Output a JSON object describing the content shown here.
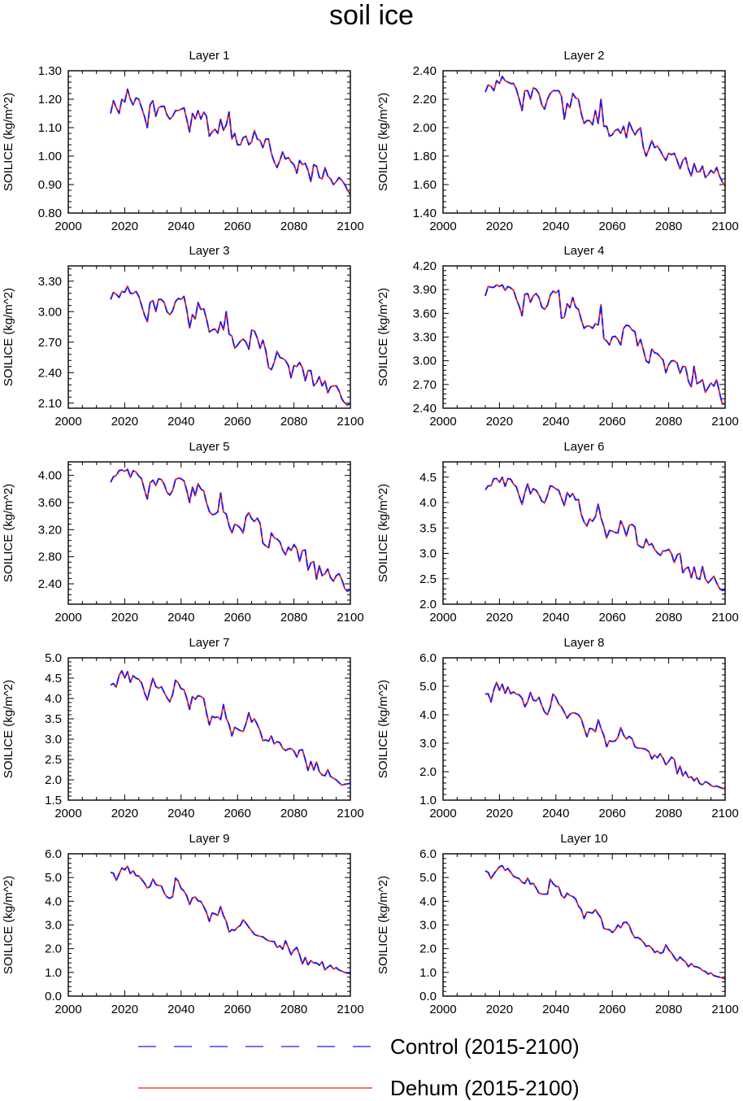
{
  "chart_data": {
    "type": "line",
    "title": "soil ice",
    "layout": "5 rows x 2 columns of panels",
    "x_axis": {
      "range": [
        2000,
        2100
      ],
      "ticks": [
        2000,
        2020,
        2040,
        2060,
        2080,
        2100
      ]
    },
    "ylabel": "SOILICE  (kg/m^2)",
    "series_styles": [
      {
        "name": "Control (2015-2100)",
        "color": "#1a1aff",
        "dash": "dashed"
      },
      {
        "name": "Dehum (2015-2100)",
        "color": "#e8201c",
        "dash": "solid"
      }
    ],
    "legend": [
      "Control (2015-2100)",
      "Dehum (2015-2100)"
    ],
    "panels": [
      {
        "title": "Layer 1",
        "ylim": [
          0.8,
          1.3
        ],
        "yticks": [
          0.8,
          0.9,
          1.0,
          1.1,
          1.2,
          1.3
        ],
        "ytick_labels": [
          "0.80",
          "0.90",
          "1.00",
          "1.10",
          "1.20",
          "1.30"
        ],
        "x_start": 2015,
        "values": [
          1.15,
          1.195,
          1.17,
          1.15,
          1.2,
          1.19,
          1.235,
          1.2,
          1.18,
          1.205,
          1.2,
          1.17,
          1.14,
          1.1,
          1.18,
          1.195,
          1.14,
          1.17,
          1.175,
          1.175,
          1.145,
          1.13,
          1.14,
          1.16,
          1.16,
          1.165,
          1.17,
          1.13,
          1.085,
          1.15,
          1.13,
          1.16,
          1.13,
          1.155,
          1.14,
          1.07,
          1.085,
          1.095,
          1.08,
          1.13,
          1.09,
          1.11,
          1.155,
          1.06,
          1.08,
          1.04,
          1.04,
          1.065,
          1.07,
          1.04,
          1.05,
          1.09,
          1.06,
          1.055,
          1.03,
          1.06,
          1.06,
          1.01,
          0.98,
          0.96,
          0.985,
          1.015,
          0.99,
          0.995,
          0.98,
          0.97,
          0.94,
          0.985,
          0.97,
          0.975,
          0.95,
          0.91,
          0.97,
          0.965,
          0.925,
          0.92,
          0.96,
          0.93,
          0.92,
          0.9,
          0.91,
          0.925,
          0.915,
          0.9,
          0.88,
          0.865
        ]
      },
      {
        "title": "Layer 2",
        "ylim": [
          1.4,
          2.4
        ],
        "yticks": [
          1.4,
          1.6,
          1.8,
          2.0,
          2.2,
          2.4
        ],
        "ytick_labels": [
          "1.40",
          "1.60",
          "1.80",
          "2.00",
          "2.20",
          "2.40"
        ],
        "x_start": 2015,
        "values": [
          2.25,
          2.3,
          2.29,
          2.26,
          2.33,
          2.31,
          2.36,
          2.33,
          2.32,
          2.31,
          2.31,
          2.27,
          2.2,
          2.12,
          2.26,
          2.26,
          2.2,
          2.28,
          2.27,
          2.24,
          2.16,
          2.13,
          2.2,
          2.24,
          2.26,
          2.26,
          2.26,
          2.22,
          2.06,
          2.17,
          2.14,
          2.24,
          2.21,
          2.2,
          2.1,
          2.03,
          2.05,
          2.05,
          2.02,
          2.12,
          2.03,
          2.2,
          2.01,
          2.01,
          1.94,
          1.95,
          1.98,
          1.99,
          1.96,
          2.01,
          1.93,
          2.04,
          1.99,
          1.95,
          1.98,
          2.0,
          1.86,
          1.8,
          1.85,
          1.91,
          1.86,
          1.87,
          1.84,
          1.8,
          1.77,
          1.82,
          1.81,
          1.82,
          1.77,
          1.71,
          1.77,
          1.79,
          1.71,
          1.66,
          1.75,
          1.69,
          1.69,
          1.73,
          1.65,
          1.67,
          1.7,
          1.68,
          1.72,
          1.66,
          1.62,
          1.59
        ]
      },
      {
        "title": "Layer 3",
        "ylim": [
          2.05,
          3.45
        ],
        "yticks": [
          2.1,
          2.4,
          2.7,
          3.0,
          3.3
        ],
        "ytick_labels": [
          "2.10",
          "2.40",
          "2.70",
          "3.00",
          "3.30"
        ],
        "x_start": 2015,
        "values": [
          3.12,
          3.19,
          3.17,
          3.14,
          3.2,
          3.19,
          3.25,
          3.18,
          3.18,
          3.2,
          3.15,
          3.06,
          2.97,
          2.9,
          3.09,
          3.11,
          3.0,
          3.12,
          3.12,
          3.09,
          3.0,
          2.97,
          3.01,
          3.1,
          3.13,
          3.12,
          3.15,
          3.02,
          2.84,
          2.97,
          2.93,
          3.09,
          3.02,
          3.03,
          2.93,
          2.8,
          2.82,
          2.83,
          2.79,
          2.9,
          2.82,
          3.0,
          2.78,
          2.76,
          2.64,
          2.67,
          2.71,
          2.73,
          2.7,
          2.63,
          2.82,
          2.81,
          2.74,
          2.64,
          2.72,
          2.62,
          2.45,
          2.43,
          2.5,
          2.61,
          2.55,
          2.54,
          2.52,
          2.47,
          2.35,
          2.47,
          2.46,
          2.5,
          2.45,
          2.32,
          2.42,
          2.42,
          2.27,
          2.3,
          2.36,
          2.27,
          2.32,
          2.2,
          2.26,
          2.27,
          2.27,
          2.22,
          2.14,
          2.1,
          2.08,
          2.1
        ]
      },
      {
        "title": "Layer 4",
        "ylim": [
          2.4,
          4.2
        ],
        "yticks": [
          2.4,
          2.7,
          3.0,
          3.3,
          3.6,
          3.9,
          4.2
        ],
        "ytick_labels": [
          "2.40",
          "2.70",
          "3.00",
          "3.30",
          "3.60",
          "3.90",
          "4.20"
        ],
        "x_start": 2015,
        "values": [
          3.82,
          3.94,
          3.93,
          3.93,
          3.96,
          3.94,
          3.96,
          3.89,
          3.94,
          3.92,
          3.89,
          3.78,
          3.69,
          3.57,
          3.84,
          3.85,
          3.74,
          3.82,
          3.85,
          3.8,
          3.68,
          3.65,
          3.7,
          3.83,
          3.88,
          3.86,
          3.89,
          3.54,
          3.55,
          3.72,
          3.67,
          3.8,
          3.68,
          3.65,
          3.52,
          3.41,
          3.44,
          3.44,
          3.41,
          3.47,
          3.45,
          3.71,
          3.28,
          3.25,
          3.2,
          3.3,
          3.31,
          3.27,
          3.2,
          3.41,
          3.45,
          3.44,
          3.39,
          3.37,
          3.19,
          3.27,
          3.14,
          3.0,
          2.97,
          3.15,
          3.1,
          3.09,
          3.05,
          3.01,
          2.85,
          2.95,
          3.0,
          3.0,
          2.97,
          2.84,
          2.93,
          2.92,
          2.74,
          2.67,
          2.93,
          2.71,
          2.73,
          2.76,
          2.6,
          2.66,
          2.72,
          2.68,
          2.76,
          2.6,
          2.45,
          2.46
        ]
      },
      {
        "title": "Layer 5",
        "ylim": [
          2.1,
          4.2
        ],
        "yticks": [
          2.4,
          2.8,
          3.2,
          3.6,
          4.0
        ],
        "ytick_labels": [
          "2.40",
          "2.80",
          "3.20",
          "3.60",
          "4.00"
        ],
        "x_start": 2015,
        "values": [
          3.9,
          3.98,
          4.0,
          4.07,
          4.08,
          4.06,
          4.09,
          3.97,
          4.07,
          4.05,
          3.99,
          3.95,
          3.79,
          3.65,
          3.89,
          3.93,
          3.85,
          3.95,
          3.94,
          3.87,
          3.75,
          3.71,
          3.78,
          3.94,
          3.96,
          3.95,
          3.92,
          3.78,
          3.6,
          3.83,
          3.7,
          3.88,
          3.8,
          3.77,
          3.6,
          3.47,
          3.42,
          3.43,
          3.46,
          3.74,
          3.46,
          3.43,
          3.26,
          3.15,
          3.28,
          3.26,
          3.22,
          3.15,
          3.39,
          3.45,
          3.36,
          3.32,
          3.37,
          3.29,
          3.0,
          2.96,
          2.93,
          3.15,
          3.08,
          3.06,
          3.02,
          2.9,
          2.83,
          2.94,
          2.89,
          2.98,
          2.92,
          2.73,
          2.89,
          2.9,
          2.6,
          2.71,
          2.73,
          2.47,
          2.67,
          2.52,
          2.55,
          2.62,
          2.49,
          2.44,
          2.52,
          2.55,
          2.46,
          2.33,
          2.29,
          2.32
        ]
      },
      {
        "title": "Layer 6",
        "ylim": [
          2.0,
          4.8
        ],
        "yticks": [
          2.0,
          2.5,
          3.0,
          3.5,
          4.0,
          4.5
        ],
        "ytick_labels": [
          "2.0",
          "2.5",
          "3.0",
          "3.5",
          "4.0",
          "4.5"
        ],
        "x_start": 2015,
        "values": [
          4.25,
          4.33,
          4.33,
          4.47,
          4.47,
          4.4,
          4.5,
          4.32,
          4.47,
          4.46,
          4.36,
          4.31,
          4.13,
          3.96,
          4.19,
          4.37,
          4.17,
          4.27,
          4.24,
          4.15,
          4.03,
          3.99,
          4.14,
          4.33,
          4.31,
          4.27,
          4.24,
          4.09,
          3.94,
          4.2,
          4.11,
          4.18,
          4.05,
          4.06,
          3.77,
          3.62,
          3.54,
          3.68,
          3.63,
          3.72,
          3.97,
          3.7,
          3.53,
          3.3,
          3.45,
          3.44,
          3.41,
          3.4,
          3.64,
          3.52,
          3.34,
          3.55,
          3.57,
          3.52,
          3.17,
          3.13,
          3.11,
          3.28,
          3.16,
          3.19,
          3.08,
          3.01,
          2.96,
          3.05,
          3.05,
          3.08,
          2.99,
          2.82,
          2.97,
          3.0,
          2.62,
          2.7,
          2.73,
          2.52,
          2.73,
          2.51,
          2.49,
          2.74,
          2.5,
          2.42,
          2.48,
          2.55,
          2.42,
          2.31,
          2.27,
          2.28
        ]
      },
      {
        "title": "Layer 7",
        "ylim": [
          1.5,
          5.0
        ],
        "yticks": [
          1.5,
          2.0,
          2.5,
          3.0,
          3.5,
          4.0,
          4.5,
          5.0
        ],
        "ytick_labels": [
          "1.5",
          "2.0",
          "2.5",
          "3.0",
          "3.5",
          "4.0",
          "4.5",
          "5.0"
        ],
        "x_start": 2015,
        "values": [
          4.33,
          4.37,
          4.28,
          4.57,
          4.68,
          4.5,
          4.66,
          4.4,
          4.56,
          4.5,
          4.47,
          4.38,
          4.15,
          3.96,
          4.24,
          4.5,
          4.3,
          4.25,
          4.29,
          4.15,
          4.02,
          3.92,
          4.1,
          4.45,
          4.38,
          4.24,
          4.22,
          4.01,
          3.73,
          4.05,
          3.98,
          4.07,
          4.05,
          4.0,
          3.65,
          3.35,
          3.56,
          3.53,
          3.55,
          3.48,
          3.85,
          3.52,
          3.36,
          3.08,
          3.29,
          3.25,
          3.21,
          3.19,
          3.38,
          3.65,
          3.42,
          3.5,
          3.36,
          3.2,
          2.96,
          2.98,
          2.95,
          3.08,
          2.88,
          2.94,
          2.91,
          2.78,
          2.72,
          2.76,
          2.77,
          2.71,
          2.56,
          2.73,
          2.74,
          2.5,
          2.23,
          2.45,
          2.24,
          2.44,
          2.2,
          2.12,
          2.1,
          2.25,
          2.08,
          2.04,
          2.0,
          1.93,
          1.87,
          1.89,
          1.9,
          1.92
        ]
      },
      {
        "title": "Layer 8",
        "ylim": [
          1.0,
          6.0
        ],
        "yticks": [
          1.0,
          2.0,
          3.0,
          4.0,
          5.0,
          6.0
        ],
        "ytick_labels": [
          "1.0",
          "2.0",
          "3.0",
          "4.0",
          "5.0",
          "6.0"
        ],
        "x_start": 2015,
        "values": [
          4.72,
          4.74,
          4.45,
          4.88,
          5.14,
          4.86,
          5.07,
          4.75,
          4.97,
          4.74,
          4.8,
          4.73,
          4.7,
          4.58,
          4.28,
          4.46,
          4.79,
          4.51,
          4.49,
          4.61,
          4.32,
          4.1,
          4.0,
          4.27,
          4.73,
          4.61,
          4.38,
          4.28,
          4.09,
          3.88,
          4.02,
          4.07,
          4.05,
          4.0,
          3.86,
          3.53,
          3.23,
          3.52,
          3.5,
          3.4,
          3.83,
          3.52,
          3.27,
          2.88,
          3.09,
          3.06,
          3.08,
          3.2,
          3.55,
          3.29,
          3.15,
          3.24,
          3.16,
          2.88,
          2.83,
          2.82,
          2.81,
          2.78,
          2.7,
          2.45,
          2.59,
          2.49,
          2.63,
          2.47,
          2.24,
          2.36,
          2.51,
          2.43,
          1.93,
          2.2,
          1.85,
          2.0,
          1.79,
          1.82,
          1.68,
          1.79,
          1.58,
          1.54,
          1.65,
          1.6,
          1.52,
          1.47,
          1.5,
          1.45,
          1.43,
          1.41
        ]
      },
      {
        "title": "Layer 9",
        "ylim": [
          0.0,
          6.0
        ],
        "yticks": [
          0.0,
          1.0,
          2.0,
          3.0,
          4.0,
          5.0,
          6.0
        ],
        "ytick_labels": [
          "0.0",
          "1.0",
          "2.0",
          "3.0",
          "4.0",
          "5.0",
          "6.0"
        ],
        "x_start": 2015,
        "values": [
          5.22,
          5.18,
          4.88,
          5.15,
          5.4,
          5.32,
          5.48,
          5.17,
          5.29,
          5.08,
          5.06,
          4.92,
          4.77,
          4.56,
          4.62,
          4.94,
          4.71,
          4.66,
          4.65,
          4.35,
          4.18,
          4.12,
          4.2,
          4.98,
          4.85,
          4.54,
          4.43,
          4.23,
          3.86,
          4.14,
          4.18,
          4.02,
          3.99,
          3.77,
          3.53,
          3.15,
          3.5,
          3.47,
          3.4,
          3.77,
          3.39,
          3.15,
          2.7,
          2.8,
          2.77,
          2.9,
          2.98,
          3.22,
          3.08,
          2.9,
          2.75,
          2.6,
          2.55,
          2.52,
          2.5,
          2.4,
          2.33,
          2.31,
          2.3,
          2.05,
          2.12,
          1.98,
          2.33,
          2.05,
          1.75,
          1.94,
          2.05,
          1.75,
          1.35,
          1.63,
          1.32,
          1.5,
          1.4,
          1.4,
          1.3,
          1.45,
          1.1,
          1.22,
          1.3,
          1.14,
          1.2,
          1.1,
          1.05,
          1.0,
          0.97,
          0.95
        ]
      },
      {
        "title": "Layer 10",
        "ylim": [
          0.0,
          6.0
        ],
        "yticks": [
          0.0,
          1.0,
          2.0,
          3.0,
          4.0,
          5.0,
          6.0
        ],
        "ytick_labels": [
          "0.0",
          "1.0",
          "2.0",
          "3.0",
          "4.0",
          "5.0",
          "6.0"
        ],
        "x_start": 2015,
        "values": [
          5.28,
          5.22,
          4.95,
          5.15,
          5.3,
          5.45,
          5.5,
          5.3,
          5.38,
          5.22,
          5.05,
          5.0,
          4.95,
          4.8,
          4.75,
          4.98,
          4.72,
          4.76,
          4.56,
          4.34,
          4.3,
          4.3,
          4.3,
          4.93,
          4.75,
          4.63,
          4.6,
          4.25,
          4.13,
          4.34,
          4.24,
          4.2,
          4.1,
          3.8,
          3.65,
          3.27,
          3.55,
          3.52,
          3.5,
          3.65,
          3.46,
          3.3,
          2.85,
          2.82,
          2.8,
          2.68,
          2.79,
          3.0,
          2.88,
          3.1,
          3.12,
          2.98,
          2.66,
          2.46,
          2.48,
          2.4,
          2.28,
          2.1,
          2.13,
          2.03,
          1.84,
          1.9,
          1.8,
          1.85,
          2.16,
          1.95,
          1.82,
          1.63,
          1.48,
          1.65,
          1.53,
          1.44,
          1.24,
          1.37,
          1.25,
          1.23,
          1.18,
          1.08,
          1.04,
          0.93,
          0.98,
          0.86,
          0.83,
          0.8,
          0.76,
          0.73
        ]
      }
    ]
  }
}
